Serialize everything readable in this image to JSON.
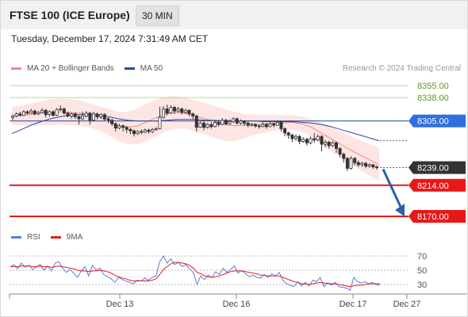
{
  "header": {
    "title": "FTSE 100 (ICE Europe)",
    "interval": "30 MIN"
  },
  "timestamp": "Tuesday, December 17, 2024 7:31:49 AM CET",
  "legend": {
    "items": [
      {
        "label": "MA 20 + Bollinger Bands",
        "color": "#f08a80"
      },
      {
        "label": "MA 50",
        "color": "#2a4a9a"
      }
    ],
    "credit": "Research © 2024 Trading Central"
  },
  "rsi_legend": {
    "items": [
      {
        "label": "RSI",
        "color": "#5b7fd6"
      },
      {
        "label": "9MA",
        "color": "#e02020"
      }
    ]
  },
  "chart_data": {
    "type": "candlestick",
    "y_range": [
      8160,
      8362
    ],
    "x_labels": [
      "Dec 13",
      "Dec 16",
      "Dec 17",
      "Dec 27"
    ],
    "last_price": 8239.0,
    "levels": [
      {
        "value": 8355.0,
        "label": "8355.00",
        "kind": "resistance-light"
      },
      {
        "value": 8338.0,
        "label": "8338.00",
        "kind": "resistance-light"
      },
      {
        "value": 8305.0,
        "label": "8305.00",
        "kind": "pivot"
      },
      {
        "value": 8239.0,
        "label": "8239.00",
        "kind": "last"
      },
      {
        "value": 8214.0,
        "label": "8214.00",
        "kind": "support"
      },
      {
        "value": 8170.0,
        "label": "8170.00",
        "kind": "support"
      }
    ],
    "forecast": {
      "from": 8239,
      "to": 8170,
      "direction": "down"
    },
    "ma20": [
      8312,
      8313,
      8314,
      8316,
      8317,
      8318,
      8317,
      8316,
      8314,
      8310,
      8304,
      8298,
      8296,
      8298,
      8304,
      8310,
      8315,
      8317,
      8316,
      8312,
      8308,
      8304,
      8300,
      8298,
      8299,
      8300,
      8301,
      8302,
      8302,
      8303,
      8301,
      8296,
      8288,
      8280,
      8272,
      8264,
      8257,
      8250,
      8243
    ],
    "bb_upper": [
      8325,
      8327,
      8330,
      8333,
      8336,
      8337,
      8336,
      8334,
      8330,
      8326,
      8322,
      8318,
      8318,
      8322,
      8330,
      8336,
      8339,
      8340,
      8338,
      8334,
      8330,
      8326,
      8322,
      8318,
      8315,
      8314,
      8314,
      8314,
      8314,
      8313,
      8311,
      8308,
      8303,
      8297,
      8290,
      8284,
      8278,
      8272,
      8267
    ],
    "bb_lower": [
      8300,
      8299,
      8298,
      8299,
      8299,
      8300,
      8299,
      8298,
      8296,
      8292,
      8285,
      8277,
      8272,
      8272,
      8277,
      8284,
      8291,
      8294,
      8294,
      8290,
      8286,
      8281,
      8277,
      8276,
      8280,
      8285,
      8288,
      8291,
      8292,
      8293,
      8290,
      8283,
      8272,
      8262,
      8253,
      8244,
      8236,
      8228,
      8220
    ],
    "ma50": [
      8287,
      8293,
      8299,
      8304,
      8308,
      8311,
      8313,
      8314,
      8314,
      8313,
      8311,
      8308,
      8306,
      8305,
      8305,
      8305,
      8306,
      8307,
      8307,
      8307,
      8306,
      8306,
      8305,
      8305,
      8305,
      8305,
      8304,
      8304,
      8304,
      8304,
      8303,
      8302,
      8300,
      8297,
      8293,
      8289,
      8285,
      8281,
      8277
    ],
    "candles": [
      [
        8310,
        8312,
        8306,
        8314
      ],
      [
        8312,
        8315,
        8310,
        8317
      ],
      [
        8315,
        8313,
        8311,
        8318
      ],
      [
        8313,
        8318,
        8312,
        8320
      ],
      [
        8318,
        8316,
        8314,
        8320
      ],
      [
        8316,
        8319,
        8315,
        8322
      ],
      [
        8319,
        8315,
        8313,
        8321
      ],
      [
        8315,
        8317,
        8313,
        8319
      ],
      [
        8317,
        8320,
        8316,
        8323
      ],
      [
        8320,
        8314,
        8310,
        8322
      ],
      [
        8314,
        8318,
        8311,
        8320
      ],
      [
        8318,
        8313,
        8311,
        8320
      ],
      [
        8313,
        8321,
        8312,
        8323
      ],
      [
        8321,
        8322,
        8319,
        8327
      ],
      [
        8322,
        8316,
        8314,
        8324
      ],
      [
        8316,
        8312,
        8310,
        8318
      ],
      [
        8312,
        8315,
        8308,
        8317
      ],
      [
        8315,
        8311,
        8308,
        8317
      ],
      [
        8311,
        8308,
        8300,
        8313
      ],
      [
        8308,
        8312,
        8306,
        8318
      ],
      [
        8312,
        8316,
        8310,
        8319
      ],
      [
        8316,
        8306,
        8300,
        8318
      ],
      [
        8306,
        8315,
        8304,
        8318
      ],
      [
        8315,
        8311,
        8307,
        8317
      ],
      [
        8311,
        8314,
        8308,
        8316
      ],
      [
        8314,
        8308,
        8305,
        8316
      ],
      [
        8308,
        8306,
        8302,
        8310
      ],
      [
        8306,
        8301,
        8298,
        8308
      ],
      [
        8301,
        8295,
        8290,
        8303
      ],
      [
        8295,
        8298,
        8293,
        8301
      ],
      [
        8298,
        8296,
        8290,
        8300
      ],
      [
        8296,
        8293,
        8288,
        8298
      ],
      [
        8293,
        8291,
        8286,
        8295
      ],
      [
        8291,
        8287,
        8283,
        8293
      ],
      [
        8287,
        8290,
        8285,
        8292
      ],
      [
        8290,
        8289,
        8286,
        8293
      ],
      [
        8289,
        8292,
        8288,
        8294
      ],
      [
        8292,
        8290,
        8287,
        8294
      ],
      [
        8290,
        8293,
        8288,
        8295
      ],
      [
        8293,
        8294,
        8291,
        8296
      ],
      [
        8294,
        8310,
        8293,
        8325
      ],
      [
        8310,
        8322,
        8308,
        8326
      ],
      [
        8322,
        8316,
        8313,
        8328
      ],
      [
        8316,
        8324,
        8315,
        8327
      ],
      [
        8324,
        8319,
        8315,
        8326
      ],
      [
        8319,
        8322,
        8317,
        8325
      ],
      [
        8322,
        8317,
        8314,
        8324
      ],
      [
        8317,
        8320,
        8315,
        8322
      ],
      [
        8320,
        8315,
        8312,
        8321
      ],
      [
        8315,
        8312,
        8308,
        8317
      ],
      [
        8312,
        8296,
        8290,
        8314
      ],
      [
        8296,
        8302,
        8295,
        8304
      ],
      [
        8302,
        8296,
        8292,
        8304
      ],
      [
        8296,
        8300,
        8294,
        8302
      ],
      [
        8300,
        8297,
        8294,
        8303
      ],
      [
        8297,
        8303,
        8296,
        8305
      ],
      [
        8303,
        8300,
        8297,
        8305
      ],
      [
        8300,
        8306,
        8299,
        8309
      ],
      [
        8306,
        8301,
        8299,
        8308
      ],
      [
        8301,
        8304,
        8300,
        8307
      ],
      [
        8304,
        8308,
        8302,
        8310
      ],
      [
        8308,
        8302,
        8300,
        8310
      ],
      [
        8302,
        8305,
        8300,
        8307
      ],
      [
        8305,
        8302,
        8298,
        8306
      ],
      [
        8302,
        8299,
        8296,
        8304
      ],
      [
        8299,
        8300,
        8297,
        8302
      ],
      [
        8300,
        8298,
        8295,
        8302
      ],
      [
        8298,
        8297,
        8294,
        8300
      ],
      [
        8297,
        8300,
        8296,
        8303
      ],
      [
        8300,
        8297,
        8294,
        8302
      ],
      [
        8297,
        8301,
        8296,
        8303
      ],
      [
        8301,
        8299,
        8296,
        8303
      ],
      [
        8299,
        8303,
        8298,
        8305
      ],
      [
        8303,
        8294,
        8290,
        8305
      ],
      [
        8294,
        8288,
        8283,
        8296
      ],
      [
        8288,
        8285,
        8280,
        8290
      ],
      [
        8285,
        8280,
        8275,
        8287
      ],
      [
        8280,
        8283,
        8277,
        8286
      ],
      [
        8283,
        8276,
        8272,
        8285
      ],
      [
        8276,
        8279,
        8274,
        8282
      ],
      [
        8279,
        8274,
        8270,
        8281
      ],
      [
        8274,
        8280,
        8272,
        8283
      ],
      [
        8280,
        8278,
        8274,
        8288
      ],
      [
        8278,
        8283,
        8276,
        8286
      ],
      [
        8283,
        8272,
        8262,
        8285
      ],
      [
        8272,
        8275,
        8268,
        8278
      ],
      [
        8275,
        8270,
        8266,
        8277
      ],
      [
        8270,
        8274,
        8268,
        8277
      ],
      [
        8274,
        8266,
        8260,
        8276
      ],
      [
        8266,
        8258,
        8254,
        8268
      ],
      [
        8258,
        8252,
        8246,
        8260
      ],
      [
        8252,
        8238,
        8234,
        8254
      ],
      [
        8238,
        8252,
        8236,
        8255
      ],
      [
        8252,
        8246,
        8242,
        8254
      ],
      [
        8246,
        8243,
        8240,
        8249
      ],
      [
        8243,
        8245,
        8240,
        8247
      ],
      [
        8245,
        8241,
        8238,
        8247
      ],
      [
        8241,
        8243,
        8239,
        8245
      ],
      [
        8243,
        8240,
        8237,
        8244
      ],
      [
        8240,
        8239,
        8236,
        8242
      ]
    ],
    "rsi": {
      "levels": [
        70,
        50,
        30
      ],
      "y_range": [
        20,
        80
      ],
      "rsi": [
        55,
        58,
        52,
        60,
        54,
        57,
        51,
        55,
        58,
        50,
        56,
        49,
        60,
        62,
        53,
        47,
        51,
        46,
        40,
        49,
        55,
        42,
        57,
        50,
        53,
        44,
        41,
        38,
        33,
        40,
        37,
        35,
        33,
        31,
        36,
        35,
        39,
        36,
        40,
        42,
        62,
        70,
        60,
        66,
        58,
        61,
        55,
        58,
        52,
        47,
        30,
        42,
        37,
        43,
        40,
        48,
        44,
        53,
        47,
        51,
        56,
        46,
        50,
        45,
        41,
        43,
        40,
        39,
        44,
        40,
        45,
        42,
        47,
        36,
        31,
        29,
        27,
        34,
        28,
        33,
        28,
        36,
        34,
        40,
        27,
        32,
        29,
        33,
        27,
        26,
        25,
        22,
        40,
        34,
        32,
        34,
        31,
        33,
        30,
        29
      ],
      "ma9": [
        55,
        55,
        55,
        56,
        56,
        56,
        55,
        55,
        56,
        55,
        55,
        54,
        55,
        56,
        55,
        54,
        53,
        52,
        50,
        49,
        49,
        48,
        49,
        49,
        50,
        49,
        48,
        46,
        43,
        41,
        39,
        38,
        36,
        35,
        35,
        35,
        35,
        35,
        36,
        38,
        44,
        51,
        55,
        59,
        61,
        61,
        60,
        59,
        57,
        53,
        47,
        45,
        42,
        41,
        40,
        41,
        42,
        44,
        46,
        48,
        49,
        49,
        49,
        48,
        47,
        46,
        45,
        43,
        43,
        42,
        42,
        42,
        42,
        40,
        38,
        36,
        34,
        33,
        31,
        31,
        30,
        31,
        32,
        33,
        32,
        32,
        31,
        31,
        30,
        29,
        28,
        27,
        28,
        29,
        29,
        30,
        31,
        31,
        31,
        31
      ]
    }
  }
}
